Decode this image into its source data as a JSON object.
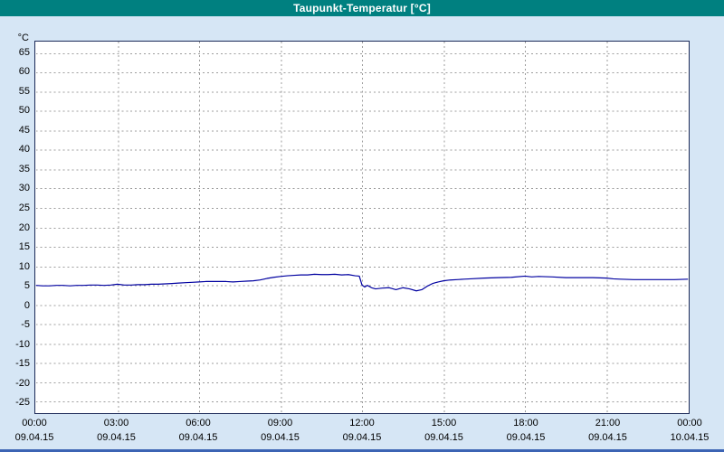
{
  "title": "Taupunkt-Temperatur [°C]",
  "colors": {
    "title_bar_bg": "#008080",
    "title_text": "#ffffff",
    "window_bg": "#d6e6f5",
    "plot_bg": "#ffffff",
    "plot_border": "#1c2a58",
    "grid": "#9c9c9c",
    "line": "#0000a0",
    "bottom_border": "#3c64b4"
  },
  "chart_data": {
    "type": "line",
    "title": "Taupunkt-Temperatur [°C]",
    "y_unit": "°C",
    "ylim": [
      -28,
      68
    ],
    "yticks": [
      65,
      60,
      55,
      50,
      45,
      40,
      35,
      30,
      25,
      20,
      15,
      10,
      5,
      0,
      -5,
      -10,
      -15,
      -20,
      -25
    ],
    "x_hours": [
      0,
      3,
      6,
      9,
      12,
      15,
      18,
      21,
      24
    ],
    "x_ticks": [
      {
        "time": "00:00",
        "date": "09.04.15"
      },
      {
        "time": "03:00",
        "date": "09.04.15"
      },
      {
        "time": "06:00",
        "date": "09.04.15"
      },
      {
        "time": "09:00",
        "date": "09.04.15"
      },
      {
        "time": "12:00",
        "date": "09.04.15"
      },
      {
        "time": "15:00",
        "date": "09.04.15"
      },
      {
        "time": "18:00",
        "date": "09.04.15"
      },
      {
        "time": "21:00",
        "date": "09.04.15"
      },
      {
        "time": "00:00",
        "date": "10.04.15"
      }
    ],
    "grid": true,
    "legend": "none",
    "series": [
      {
        "name": "Taupunkt-Temperatur",
        "color": "#0000a0",
        "points": [
          [
            0,
            5.0
          ],
          [
            0.25,
            4.9
          ],
          [
            0.5,
            4.9
          ],
          [
            0.75,
            5.0
          ],
          [
            1,
            5.0
          ],
          [
            1.25,
            4.9
          ],
          [
            1.5,
            5.0
          ],
          [
            1.75,
            5.0
          ],
          [
            2,
            5.1
          ],
          [
            2.25,
            5.1
          ],
          [
            2.5,
            5.0
          ],
          [
            2.75,
            5.1
          ],
          [
            3,
            5.3
          ],
          [
            3.25,
            5.1
          ],
          [
            3.5,
            5.1
          ],
          [
            3.75,
            5.2
          ],
          [
            4,
            5.2
          ],
          [
            4.25,
            5.3
          ],
          [
            4.5,
            5.3
          ],
          [
            4.75,
            5.4
          ],
          [
            5,
            5.5
          ],
          [
            5.25,
            5.6
          ],
          [
            5.5,
            5.7
          ],
          [
            5.75,
            5.8
          ],
          [
            6,
            5.9
          ],
          [
            6.25,
            6.0
          ],
          [
            6.5,
            6.0
          ],
          [
            6.75,
            6.0
          ],
          [
            7,
            6.0
          ],
          [
            7.25,
            5.9
          ],
          [
            7.5,
            6.0
          ],
          [
            7.75,
            6.1
          ],
          [
            8,
            6.2
          ],
          [
            8.25,
            6.4
          ],
          [
            8.5,
            6.8
          ],
          [
            8.75,
            7.1
          ],
          [
            9,
            7.3
          ],
          [
            9.25,
            7.5
          ],
          [
            9.5,
            7.6
          ],
          [
            9.75,
            7.7
          ],
          [
            10,
            7.7
          ],
          [
            10.25,
            7.9
          ],
          [
            10.5,
            7.8
          ],
          [
            10.75,
            7.8
          ],
          [
            11,
            7.9
          ],
          [
            11.25,
            7.7
          ],
          [
            11.5,
            7.8
          ],
          [
            11.75,
            7.5
          ],
          [
            11.9,
            7.4
          ],
          [
            12,
            5.1
          ],
          [
            12.1,
            4.6
          ],
          [
            12.2,
            5.0
          ],
          [
            12.35,
            4.4
          ],
          [
            12.5,
            4.1
          ],
          [
            12.75,
            4.3
          ],
          [
            13,
            4.4
          ],
          [
            13.25,
            3.9
          ],
          [
            13.5,
            4.4
          ],
          [
            13.75,
            4.1
          ],
          [
            14,
            3.6
          ],
          [
            14.2,
            3.9
          ],
          [
            14.4,
            4.8
          ],
          [
            14.6,
            5.5
          ],
          [
            14.8,
            5.9
          ],
          [
            15,
            6.2
          ],
          [
            15.25,
            6.4
          ],
          [
            15.5,
            6.5
          ],
          [
            15.75,
            6.6
          ],
          [
            16,
            6.7
          ],
          [
            16.5,
            6.9
          ],
          [
            17,
            7.0
          ],
          [
            17.5,
            7.1
          ],
          [
            18,
            7.4
          ],
          [
            18.25,
            7.2
          ],
          [
            18.5,
            7.3
          ],
          [
            19,
            7.2
          ],
          [
            19.5,
            7.0
          ],
          [
            20,
            7.0
          ],
          [
            20.5,
            7.0
          ],
          [
            21,
            6.9
          ],
          [
            21.25,
            6.7
          ],
          [
            21.5,
            6.6
          ],
          [
            22,
            6.5
          ],
          [
            22.5,
            6.5
          ],
          [
            23,
            6.5
          ],
          [
            23.5,
            6.5
          ],
          [
            24,
            6.6
          ]
        ]
      }
    ]
  }
}
